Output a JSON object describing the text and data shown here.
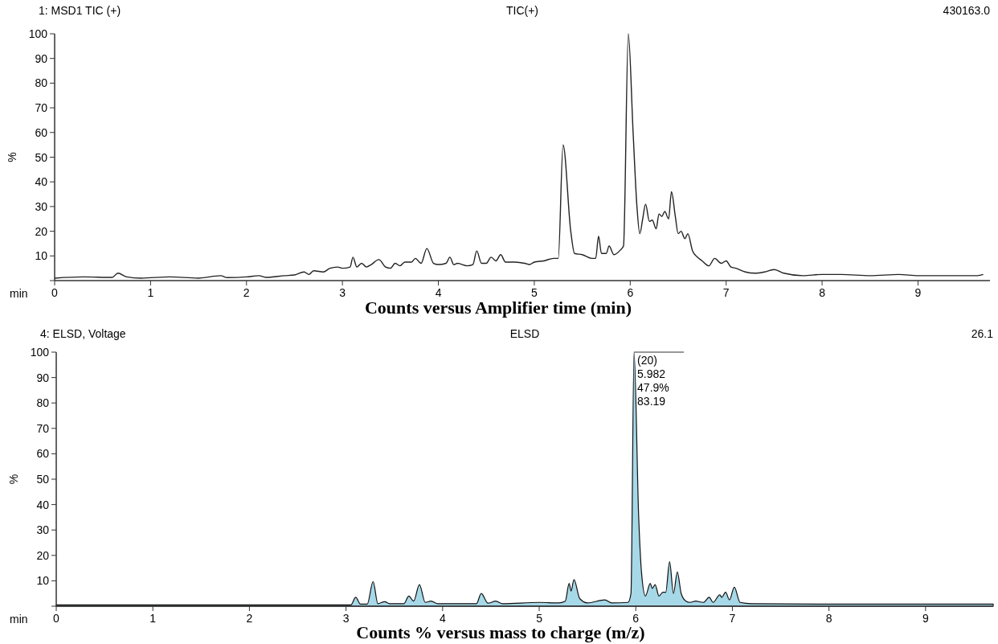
{
  "chart_data": [
    {
      "type": "line",
      "title": "TIC(+)",
      "subtitle": "1: MSD1 TIC (+)",
      "xlabel": "Counts versus Amplifier time (min)",
      "ylabel": "%",
      "annotations": [
        "430163.0",
        "min"
      ],
      "xlim": [
        0,
        9.75
      ],
      "xticks": [
        0,
        1,
        2,
        3,
        4,
        5,
        6,
        7,
        8,
        9
      ],
      "ylim": [
        0,
        100
      ],
      "yticks": [
        {
          "value": 0,
          "label": null
        },
        10,
        20,
        30,
        40,
        50,
        60,
        70,
        80,
        90,
        100
      ],
      "grid": false,
      "series": [
        {
          "color": "#222222",
          "x": [
            0,
            0.3,
            0.6,
            0.66,
            0.75,
            0.9,
            1.2,
            1.5,
            1.73,
            1.8,
            2.0,
            2.13,
            2.2,
            2.4,
            2.5,
            2.6,
            2.65,
            2.7,
            2.8,
            2.87,
            2.95,
            3.0,
            3.08,
            3.11,
            3.15,
            3.2,
            3.25,
            3.3,
            3.38,
            3.45,
            3.5,
            3.55,
            3.6,
            3.65,
            3.72,
            3.76,
            3.82,
            3.88,
            3.95,
            4.0,
            4.08,
            4.12,
            4.16,
            4.2,
            4.3,
            4.36,
            4.4,
            4.45,
            4.5,
            4.55,
            4.6,
            4.65,
            4.7,
            4.8,
            4.9,
            4.95,
            5.0,
            5.1,
            5.2,
            5.25,
            5.3,
            5.38,
            5.42,
            5.5,
            5.6,
            5.64,
            5.67,
            5.7,
            5.75,
            5.78,
            5.83,
            5.9,
            5.93,
            5.98,
            6.03,
            6.07,
            6.1,
            6.13,
            6.16,
            6.2,
            6.23,
            6.27,
            6.3,
            6.33,
            6.36,
            6.4,
            6.43,
            6.47,
            6.5,
            6.53,
            6.57,
            6.6,
            6.65,
            6.7,
            6.75,
            6.82,
            6.88,
            6.95,
            7.0,
            7.05,
            7.1,
            7.2,
            7.3,
            7.4,
            7.5,
            7.6,
            7.8,
            8.0,
            8.2,
            8.5,
            8.8,
            9.0,
            9.3,
            9.6,
            9.68
          ],
          "values": [
            1,
            1.5,
            1.3,
            3,
            1.5,
            1,
            1.5,
            1,
            2,
            1.2,
            1.5,
            2,
            1.3,
            2,
            2.3,
            3.5,
            2.5,
            4,
            3.5,
            5,
            5.5,
            5,
            5.5,
            9.5,
            5.5,
            7,
            5.5,
            6.5,
            8.5,
            5.5,
            5,
            7,
            6,
            7.5,
            7.5,
            9,
            7,
            13,
            7,
            6.5,
            7,
            9.5,
            6.5,
            7,
            6,
            6.5,
            12,
            7,
            7,
            9.5,
            8,
            10.5,
            7.5,
            7.5,
            7,
            6.5,
            7.5,
            8,
            9,
            9,
            55,
            20,
            11,
            10.5,
            9,
            9,
            18,
            11,
            11,
            14,
            10.5,
            12.5,
            14,
            100,
            60,
            30,
            19,
            25,
            31,
            24,
            24.5,
            21,
            27,
            26,
            28,
            25,
            36,
            26,
            19,
            20,
            17,
            19,
            12,
            9.5,
            8,
            6,
            9,
            7,
            8,
            5.5,
            5,
            3.5,
            3,
            3.5,
            4.5,
            3,
            2,
            2.5,
            2.5,
            2,
            2.5,
            2,
            2,
            2,
            2.5
          ]
        }
      ]
    },
    {
      "type": "area",
      "title": "ELSD",
      "subtitle": "4: ELSD, Voltage",
      "xlabel": "Counts % versus mass to charge (m/z)",
      "ylabel": "%",
      "annotations": [
        "26.1",
        "min",
        {
          "text": "(20)\n5.982\n47.9%\n83.19",
          "x": 5.982,
          "y": 100
        }
      ],
      "xlim": [
        0,
        9.7
      ],
      "xticks": [
        0,
        1,
        2,
        3,
        4,
        5,
        6,
        7,
        8,
        9
      ],
      "ylim": [
        0,
        100
      ],
      "yticks": [
        {
          "value": 0,
          "label": null
        },
        10,
        20,
        30,
        40,
        50,
        60,
        70,
        80,
        90,
        100
      ],
      "grid": false,
      "series": [
        {
          "color": "#a6d8e8",
          "x": [
            0,
            1,
            2,
            3,
            3.05,
            3.1,
            3.15,
            3.22,
            3.28,
            3.33,
            3.4,
            3.45,
            3.6,
            3.65,
            3.7,
            3.76,
            3.82,
            3.88,
            3.95,
            4.1,
            4.35,
            4.4,
            4.47,
            4.55,
            4.62,
            5.0,
            5.2,
            5.27,
            5.31,
            5.33,
            5.36,
            5.42,
            5.5,
            5.68,
            5.75,
            5.92,
            5.95,
            5.982,
            6.03,
            6.06,
            6.1,
            6.15,
            6.17,
            6.2,
            6.24,
            6.28,
            6.31,
            6.35,
            6.39,
            6.43,
            6.47,
            6.52,
            6.56,
            6.62,
            6.7,
            6.76,
            6.8,
            6.87,
            6.89,
            6.93,
            6.97,
            7.02,
            7.08,
            7.2,
            8,
            9,
            9.7
          ],
          "values": [
            0.5,
            0.5,
            0.5,
            0.5,
            0.5,
            3.5,
            0.8,
            0.8,
            9.7,
            1,
            1.8,
            1,
            1,
            4,
            2,
            8.5,
            1.5,
            2,
            1,
            1,
            1,
            5,
            1.2,
            2,
            1,
            1.5,
            1.3,
            2,
            9,
            6,
            10.5,
            3,
            1.3,
            2.5,
            1.3,
            1.5,
            5,
            100,
            35,
            13,
            4,
            9,
            7,
            8.5,
            4,
            5.5,
            5.5,
            17.5,
            5,
            13.5,
            5,
            2,
            1.5,
            2,
            1.5,
            3.5,
            1.5,
            4.5,
            3.5,
            5.5,
            2.5,
            7.5,
            1.5,
            1,
            0.8,
            0.8,
            0.8
          ]
        }
      ]
    }
  ]
}
